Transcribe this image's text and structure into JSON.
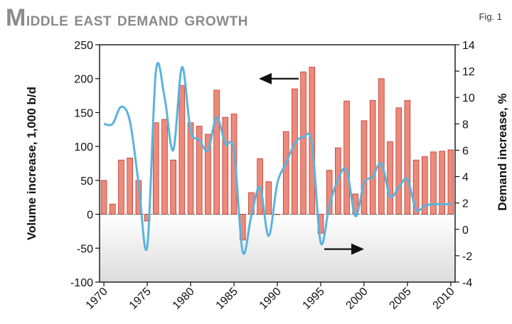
{
  "header": {
    "title": "Middle east demand growth",
    "fig_label": "Fig. 1"
  },
  "colors": {
    "bar_fill": "#ec8a7c",
    "bar_stroke": "#c0392b",
    "line": "#5ab4dc",
    "plot_bg_top": "#ffffff",
    "plot_bg_bottom": "#dcdcdc",
    "arrow": "#111111"
  },
  "chart_data": {
    "type": "bar+line",
    "title": "Middle east demand growth",
    "xlabel": "",
    "ylabel": "Volume increase, 1,000 b/d",
    "y2label": "Demand increase, %",
    "ylim": [
      -100,
      250
    ],
    "y2lim": [
      -4,
      14
    ],
    "yticks": [
      -100,
      -50,
      0,
      50,
      100,
      150,
      200,
      250
    ],
    "y2ticks": [
      -4,
      -2,
      0,
      2,
      4,
      6,
      8,
      10,
      12,
      14
    ],
    "xticks": [
      1970,
      1975,
      1980,
      1985,
      1990,
      1995,
      2000,
      2005,
      2010
    ],
    "years": [
      1970,
      1971,
      1972,
      1973,
      1974,
      1975,
      1976,
      1977,
      1978,
      1979,
      1980,
      1981,
      1982,
      1983,
      1984,
      1985,
      1986,
      1987,
      1988,
      1989,
      1990,
      1991,
      1992,
      1993,
      1994,
      1995,
      1996,
      1997,
      1998,
      1999,
      2000,
      2001,
      2002,
      2003,
      2004,
      2005,
      2006,
      2007,
      2008,
      2009,
      2010
    ],
    "series": [
      {
        "name": "Volume increase",
        "axis": "left",
        "type": "bar",
        "values": [
          50,
          15,
          80,
          83,
          50,
          -10,
          135,
          140,
          80,
          190,
          135,
          130,
          118,
          183,
          143,
          148,
          -38,
          32,
          82,
          48,
          0,
          122,
          185,
          210,
          217,
          -28,
          65,
          98,
          167,
          30,
          138,
          168,
          200,
          107,
          157,
          168,
          80,
          85,
          92,
          93,
          95
        ]
      },
      {
        "name": "Demand increase",
        "axis": "right",
        "type": "line",
        "values": [
          8.0,
          8.0,
          9.3,
          8.2,
          3.5,
          -1.3,
          12.0,
          10.0,
          6.0,
          12.3,
          7.5,
          6.8,
          6.0,
          8.5,
          6.5,
          6.0,
          -1.7,
          1.0,
          3.2,
          -0.5,
          3.5,
          5.0,
          6.5,
          7.0,
          6.5,
          -1.0,
          1.8,
          3.8,
          4.5,
          1.0,
          3.5,
          4.0,
          5.0,
          2.5,
          3.2,
          3.8,
          1.5,
          1.8,
          1.9,
          1.9,
          1.9
        ]
      }
    ],
    "annotations": [
      {
        "type": "arrow",
        "direction": "left",
        "refers_to": "left axis"
      },
      {
        "type": "arrow",
        "direction": "right",
        "refers_to": "right axis"
      }
    ],
    "grid": false
  }
}
